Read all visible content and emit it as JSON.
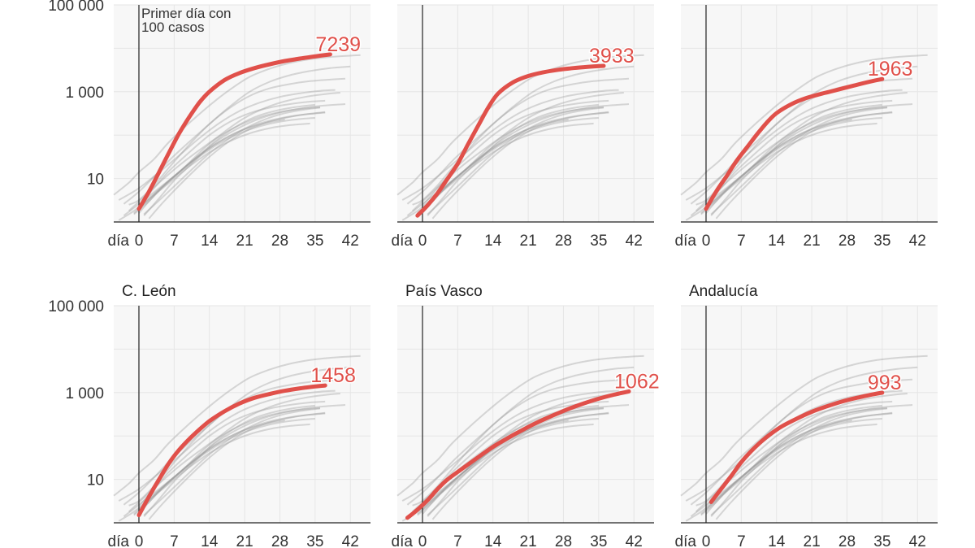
{
  "chart_data": {
    "type": "line",
    "y_scale": "log",
    "ylim": [
      1,
      100000
    ],
    "xlim": [
      -5,
      46
    ],
    "x_ticks": [
      0,
      7,
      14,
      21,
      28,
      35,
      42
    ],
    "x_tick_prefix": "día",
    "y_ticks": [
      {
        "value": 10,
        "label": "10"
      },
      {
        "value": 1000,
        "label": "1 000"
      },
      {
        "value": 100000,
        "label": "100 000"
      }
    ],
    "annotation": "Primer día con\n100 casos",
    "background_series": [
      {
        "x": [
          -5,
          -2,
          0,
          3,
          6,
          10,
          14,
          18,
          22,
          26,
          30,
          34,
          38,
          44
        ],
        "y": [
          4.2,
          8,
          14,
          28,
          70,
          190,
          480,
          1100,
          2200,
          3400,
          4600,
          5600,
          6300,
          7000
        ]
      },
      {
        "x": [
          -3,
          0,
          3,
          6,
          10,
          14,
          18,
          22,
          26,
          30,
          34,
          38,
          42
        ],
        "y": [
          2.6,
          5,
          11,
          26,
          70,
          180,
          450,
          1000,
          1700,
          2400,
          3000,
          3500,
          3800
        ]
      },
      {
        "x": [
          -2,
          0,
          3,
          6,
          10,
          14,
          18,
          22,
          26,
          30,
          34,
          38,
          41
        ],
        "y": [
          2.5,
          3.2,
          7,
          18,
          60,
          180,
          420,
          800,
          1200,
          1500,
          1750,
          1900,
          2000
        ]
      },
      {
        "x": [
          -4,
          0,
          4,
          8,
          12,
          16,
          20,
          24,
          28,
          32,
          36,
          39
        ],
        "y": [
          3.2,
          6,
          14,
          34,
          85,
          190,
          360,
          560,
          760,
          920,
          1050,
          1100
        ]
      },
      {
        "x": [
          -1,
          2,
          5,
          9,
          13,
          17,
          21,
          25,
          29,
          33,
          37,
          40
        ],
        "y": [
          1.5,
          3,
          7,
          18,
          50,
          120,
          250,
          420,
          600,
          760,
          880,
          950
        ]
      },
      {
        "x": [
          0,
          3,
          6,
          10,
          14,
          18,
          22,
          26,
          30,
          34,
          37
        ],
        "y": [
          2.4,
          6,
          15,
          40,
          100,
          200,
          320,
          430,
          520,
          590,
          620
        ]
      },
      {
        "x": [
          1,
          4,
          7,
          11,
          15,
          19,
          23,
          27,
          31,
          35
        ],
        "y": [
          1.4,
          3.5,
          9,
          25,
          70,
          150,
          260,
          360,
          440,
          500
        ]
      },
      {
        "x": [
          -2,
          1,
          4,
          8,
          12,
          16,
          20,
          24,
          28,
          32,
          36
        ],
        "y": [
          1.8,
          3.8,
          8,
          20,
          45,
          95,
          170,
          260,
          340,
          400,
          440
        ]
      },
      {
        "x": [
          0,
          3,
          7,
          11,
          15,
          19,
          23,
          27,
          31,
          35,
          37
        ],
        "y": [
          1.6,
          4,
          11,
          28,
          60,
          110,
          170,
          230,
          280,
          320,
          340
        ]
      },
      {
        "x": [
          2,
          5,
          9,
          13,
          17,
          21,
          25,
          29,
          33,
          37
        ],
        "y": [
          1.2,
          3,
          9,
          25,
          60,
          120,
          190,
          250,
          300,
          330
        ]
      },
      {
        "x": [
          -3,
          0,
          4,
          8,
          12,
          16,
          20,
          24,
          28,
          32,
          35
        ],
        "y": [
          1.4,
          2.6,
          6,
          14,
          32,
          65,
          110,
          160,
          205,
          235,
          250
        ]
      },
      {
        "x": [
          -1,
          2,
          6,
          10,
          14,
          18,
          22,
          26,
          30,
          34
        ],
        "y": [
          1.6,
          3.3,
          8,
          19,
          40,
          72,
          110,
          145,
          170,
          185
        ]
      },
      {
        "x": [
          0,
          4,
          8,
          12,
          16,
          20,
          24,
          28,
          32,
          36,
          41
        ],
        "y": [
          2,
          5.5,
          14,
          35,
          80,
          150,
          240,
          330,
          410,
          470,
          520
        ]
      },
      {
        "x": [
          1,
          5,
          9,
          13,
          17,
          21,
          25,
          29,
          33,
          36
        ],
        "y": [
          1.5,
          4,
          11,
          30,
          70,
          140,
          230,
          320,
          390,
          430
        ]
      },
      {
        "x": [
          -4,
          -1,
          2,
          6,
          10,
          14,
          18,
          22,
          26,
          29
        ],
        "y": [
          1.1,
          1.8,
          3.5,
          9,
          22,
          50,
          95,
          150,
          200,
          230
        ]
      }
    ],
    "panels": [
      {
        "title": "",
        "label": "7239",
        "x": [
          0,
          2,
          4,
          6,
          8,
          10,
          12,
          14,
          17,
          20,
          23,
          26,
          29,
          32,
          35,
          38
        ],
        "y": [
          2,
          5,
          14,
          40,
          110,
          260,
          560,
          1000,
          1850,
          2700,
          3500,
          4300,
          5100,
          5800,
          6500,
          7239
        ]
      },
      {
        "title": "",
        "label": "3933",
        "x": [
          -1,
          1,
          3,
          5,
          7,
          9,
          11,
          13,
          15,
          18,
          21,
          24,
          27,
          30,
          33,
          36
        ],
        "y": [
          1.4,
          2.4,
          4.6,
          10,
          22,
          60,
          160,
          420,
          900,
          1650,
          2300,
          2800,
          3200,
          3500,
          3750,
          3933
        ]
      },
      {
        "title": "",
        "label": "1963",
        "x": [
          0,
          2,
          4,
          6,
          8,
          10,
          12,
          14,
          17,
          20,
          23,
          26,
          29,
          32,
          35
        ],
        "y": [
          2,
          5,
          11,
          25,
          50,
          100,
          190,
          320,
          520,
          720,
          900,
          1100,
          1350,
          1650,
          1963
        ]
      },
      {
        "title": "C. León",
        "label": "1458",
        "x": [
          0,
          2,
          4,
          6,
          8,
          10,
          12,
          14,
          17,
          20,
          23,
          26,
          29,
          32,
          35,
          37
        ],
        "y": [
          1.5,
          4,
          10,
          24,
          48,
          85,
          140,
          220,
          370,
          560,
          760,
          930,
          1100,
          1250,
          1380,
          1458
        ]
      },
      {
        "title": "País Vasco",
        "label": "1062",
        "x": [
          -3,
          -1,
          1,
          3,
          5,
          8,
          11,
          14,
          17,
          20,
          23,
          26,
          29,
          32,
          35,
          38,
          41
        ],
        "y": [
          1.3,
          2,
          3.3,
          6,
          10,
          18,
          32,
          56,
          90,
          140,
          210,
          300,
          420,
          560,
          720,
          890,
          1062
        ]
      },
      {
        "title": "Andalucía",
        "label": "993",
        "x": [
          1,
          3,
          5,
          7,
          9,
          11,
          13,
          15,
          18,
          21,
          24,
          27,
          30,
          33,
          35
        ],
        "y": [
          3,
          6,
          12,
          25,
          45,
          75,
          115,
          165,
          250,
          360,
          480,
          620,
          760,
          900,
          993
        ]
      }
    ]
  }
}
